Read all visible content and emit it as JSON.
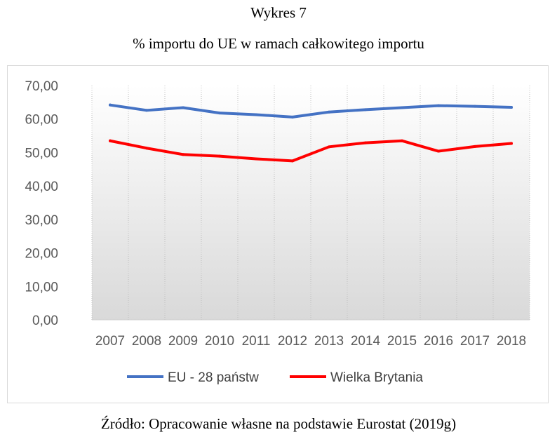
{
  "figure": {
    "label": "Wykres 7",
    "title": "% importu do UE w ramach całkowitego importu",
    "source": "Źródło: Opracowanie własne na podstawie Eurostat (2019g)"
  },
  "chart_data": {
    "type": "line",
    "title": "% importu do UE w ramach całkowitego importu",
    "xlabel": "",
    "ylabel": "",
    "categories": [
      "2007",
      "2008",
      "2009",
      "2010",
      "2011",
      "2012",
      "2013",
      "2014",
      "2015",
      "2016",
      "2017",
      "2018"
    ],
    "ylim": [
      0,
      70
    ],
    "yticks": [
      "0,00",
      "10,00",
      "20,00",
      "30,00",
      "40,00",
      "50,00",
      "60,00",
      "70,00"
    ],
    "ytick_values": [
      0,
      10,
      20,
      30,
      40,
      50,
      60,
      70
    ],
    "grid": "vertical",
    "legend_position": "bottom",
    "series": [
      {
        "name": "EU - 28 państw",
        "color": "#4472c4",
        "values": [
          64.2,
          62.6,
          63.4,
          61.8,
          61.3,
          60.6,
          62.1,
          62.8,
          63.4,
          64.0,
          63.8,
          63.5
        ]
      },
      {
        "name": "Wielka Brytania",
        "color": "#ff0000",
        "values": [
          53.5,
          51.3,
          49.4,
          48.9,
          48.1,
          47.5,
          51.7,
          52.9,
          53.5,
          50.4,
          51.8,
          52.7
        ]
      }
    ]
  }
}
